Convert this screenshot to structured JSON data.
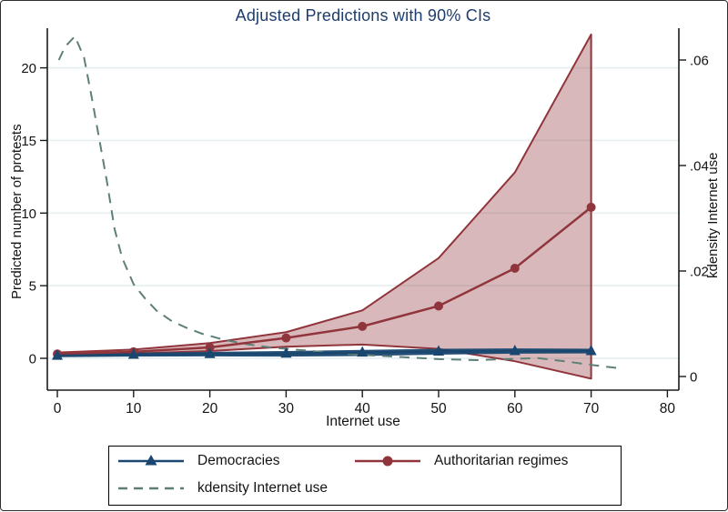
{
  "colors": {
    "title": "#1c3d6e",
    "grid": "#e6f0f0",
    "axis": "#1a1a1a",
    "tick_text": "#141414",
    "background": "#ffffff",
    "democracies": "#1a476f",
    "authoritarian": "#90353b",
    "kdensity": "#5e7f77",
    "ci_band_fill": "rgba(144,53,59,0.35)"
  },
  "legend": {
    "items": [
      {
        "label": "Democracies",
        "marker": "triangle",
        "color": "#1a476f",
        "dash": false
      },
      {
        "label": "Authoritarian regimes",
        "marker": "circle",
        "color": "#90353b",
        "dash": false
      },
      {
        "label": "kdensity Internet use",
        "marker": "none",
        "color": "#5e7f77",
        "dash": true
      }
    ]
  },
  "chart_data": {
    "type": "line",
    "title": "Adjusted Predictions with 90% CIs",
    "xlabel": "Internet use",
    "ylabel_left": "Predicted number of protests",
    "ylabel_right": "kdensity Internet use",
    "ci_level": "90%",
    "grid": "horizontal-only",
    "legend_position": "bottom",
    "x_ticks": [
      0,
      10,
      20,
      30,
      40,
      50,
      60,
      70,
      80
    ],
    "x_tick_labels": [
      "0",
      "10",
      "20",
      "30",
      "40",
      "50",
      "60",
      "70",
      "80"
    ],
    "y_left_ticks": [
      0,
      5,
      10,
      15,
      20
    ],
    "y_left_tick_labels": [
      "0",
      "5",
      "10",
      "15",
      "20"
    ],
    "y_right_ticks": [
      0,
      0.02,
      0.04,
      0.06
    ],
    "y_right_tick_labels": [
      "0",
      ".02",
      ".04",
      ".06"
    ],
    "xlim": [
      -1.4,
      81.5
    ],
    "ylim_left": [
      -2.2,
      22.7
    ],
    "ylim_right": [
      -0.0026,
      0.066
    ],
    "series": [
      {
        "name": "Democracies",
        "axis": "left",
        "marker": "triangle",
        "dash": false,
        "color": "#1a476f",
        "x": [
          0,
          10,
          20,
          30,
          40,
          50,
          60,
          70
        ],
        "y": [
          0.18,
          0.25,
          0.3,
          0.33,
          0.4,
          0.47,
          0.5,
          0.5
        ],
        "ci_upper": [
          0.3,
          0.38,
          0.45,
          0.5,
          0.58,
          0.66,
          0.68,
          0.66
        ],
        "ci_lower": [
          0.08,
          0.12,
          0.13,
          0.12,
          0.16,
          0.25,
          0.32,
          0.34
        ],
        "band_fill": "#1a476f"
      },
      {
        "name": "Authoritarian regimes",
        "axis": "left",
        "marker": "circle",
        "dash": false,
        "color": "#90353b",
        "x": [
          0,
          10,
          20,
          30,
          40,
          50,
          60,
          70
        ],
        "y": [
          0.3,
          0.45,
          0.75,
          1.4,
          2.2,
          3.6,
          6.2,
          10.4
        ],
        "ci_upper": [
          0.4,
          0.6,
          1.05,
          1.8,
          3.3,
          6.9,
          12.8,
          22.3
        ],
        "ci_lower": [
          0.22,
          0.33,
          0.5,
          0.8,
          0.95,
          0.65,
          -0.2,
          -1.4
        ],
        "band_fill": "rgba(144,53,59,0.35)"
      },
      {
        "name": "kdensity Internet use",
        "axis": "right",
        "marker": "none",
        "dash": true,
        "color": "#5e7f77",
        "x": [
          0.2,
          1,
          2.3,
          3.5,
          4.5,
          5.5,
          6.5,
          7.5,
          8.5,
          10,
          11.5,
          13,
          15,
          17,
          19,
          22,
          25,
          28,
          32,
          36,
          40,
          45,
          50,
          55,
          59,
          63,
          67,
          70,
          73.5
        ],
        "y": [
          0.06,
          0.0625,
          0.0645,
          0.0605,
          0.053,
          0.045,
          0.037,
          0.028,
          0.0225,
          0.0175,
          0.0148,
          0.0125,
          0.0105,
          0.0092,
          0.0081,
          0.0069,
          0.0061,
          0.0055,
          0.005,
          0.0045,
          0.0041,
          0.0037,
          0.0033,
          0.0031,
          0.0033,
          0.0035,
          0.0028,
          0.0022,
          0.0016
        ]
      }
    ]
  }
}
